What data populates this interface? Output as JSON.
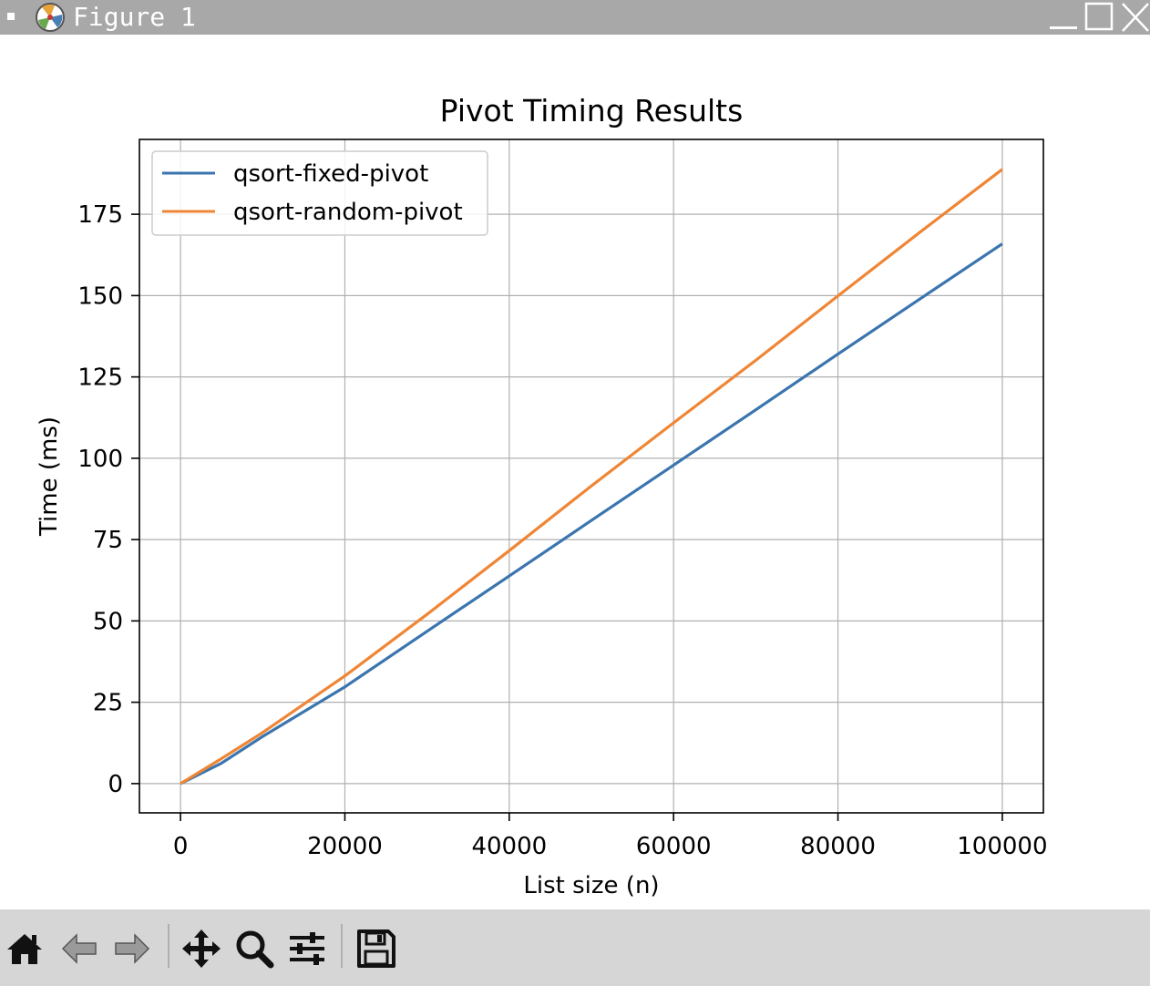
{
  "window": {
    "title": "Figure 1",
    "icon": "matplotlib-icon"
  },
  "toolbar": {
    "tools": [
      "home-icon",
      "back-arrow-icon",
      "forward-arrow-icon",
      "pan-icon",
      "zoom-icon",
      "configure-subplots-icon",
      "save-icon"
    ]
  },
  "colors": {
    "fixed": "#3b75af",
    "random": "#ef8636",
    "grid": "#b0b0b0",
    "titlebar": "#a8a8a8",
    "toolbar": "#d6d6d6"
  },
  "chart_data": {
    "type": "line",
    "title": "Pivot Timing Results",
    "xlabel": "List size (n)",
    "ylabel": "Time (ms)",
    "xlim": [
      -5000,
      105000
    ],
    "ylim": [
      -9,
      198
    ],
    "xticks": [
      0,
      20000,
      40000,
      60000,
      80000,
      100000
    ],
    "yticks": [
      0,
      25,
      50,
      75,
      100,
      125,
      150,
      175
    ],
    "grid": true,
    "legend_position": "upper-left",
    "x": [
      0,
      5000,
      10000,
      20000,
      30000,
      40000,
      50000,
      60000,
      70000,
      80000,
      90000,
      100000
    ],
    "series": [
      {
        "name": "qsort-fixed-pivot",
        "color": "#3b75af",
        "values": [
          0.0,
          6.3,
          14.5,
          29.7,
          46.8,
          63.8,
          80.9,
          97.9,
          114.9,
          132.0,
          149.0,
          165.9
        ]
      },
      {
        "name": "qsort-random-pivot",
        "color": "#ef8636",
        "values": [
          0.0,
          7.7,
          15.7,
          33.1,
          52.0,
          71.6,
          91.5,
          110.9,
          130.1,
          149.9,
          169.5,
          188.8
        ]
      }
    ]
  }
}
